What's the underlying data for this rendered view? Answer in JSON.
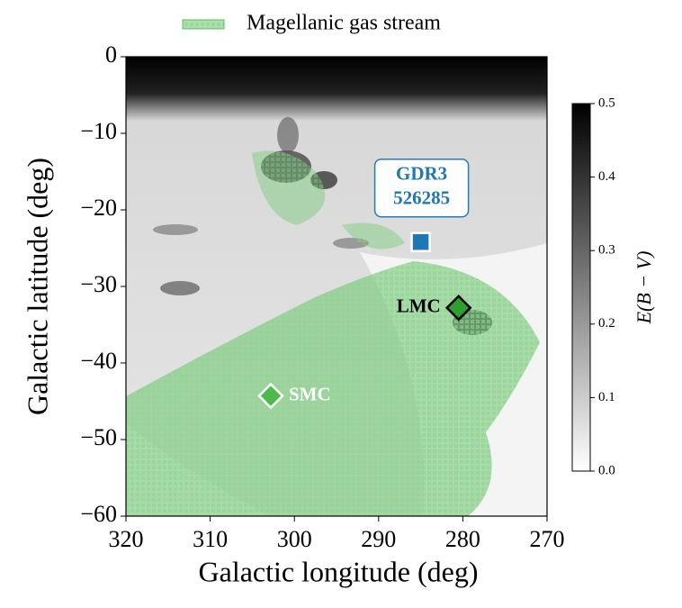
{
  "chart_data": {
    "type": "scatter",
    "legend_label": "Magellanic gas stream",
    "legend_color": "#5cbf5c",
    "xlabel": "Galactic longitude (deg)",
    "ylabel": "Galactic latitude (deg)",
    "xlim": [
      320,
      270
    ],
    "ylim": [
      -60,
      0
    ],
    "xticks": [
      320,
      310,
      300,
      290,
      280,
      270
    ],
    "yticks": [
      0,
      {
        "value": -10,
        "label": "−10"
      },
      {
        "value": -20,
        "label": "−20"
      },
      {
        "value": -30,
        "label": "−30"
      },
      {
        "value": -40,
        "label": "−40"
      },
      {
        "value": -50,
        "label": "−50"
      },
      {
        "value": -60,
        "label": "−60"
      }
    ],
    "colorbar": {
      "label": "E(B − V)",
      "lim": [
        0,
        0.5
      ],
      "ticks": [
        {
          "value": 0,
          "label": "0.0"
        },
        0.1,
        0.2,
        0.3,
        0.4,
        0.5
      ]
    },
    "objects": [
      {
        "label": [
          "GDR3",
          "526285"
        ],
        "x": 285,
        "y": -24.2,
        "marker": "square",
        "color": "#1f77b4"
      },
      {
        "label": [
          "LMC"
        ],
        "x": 280.5,
        "y": -32.8,
        "marker": "diamond",
        "color": "#2e9e2e"
      },
      {
        "label": [
          "SMC"
        ],
        "x": 302.8,
        "y": -44.3,
        "marker": "diamond",
        "color": "#4cbb4c"
      }
    ]
  }
}
